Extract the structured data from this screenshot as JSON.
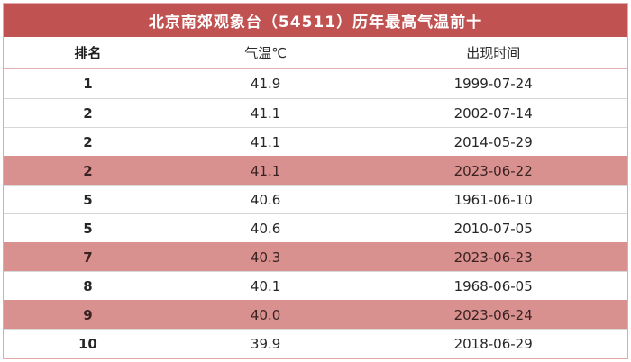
{
  "title": "北京南郊观象台（54511）历年最高气温前十",
  "columns": {
    "rank": "排名",
    "temp": "气温℃",
    "date": "出现时间"
  },
  "chart_data": {
    "type": "table",
    "title": "北京南郊观象台（54511）历年最高气温前十",
    "column_headers": [
      "排名",
      "气温℃",
      "出现时间"
    ],
    "rows": [
      {
        "rank": "1",
        "temp": "41.9",
        "date": "1999-07-24",
        "highlight": false
      },
      {
        "rank": "2",
        "temp": "41.1",
        "date": "2002-07-14",
        "highlight": false
      },
      {
        "rank": "2",
        "temp": "41.1",
        "date": "2014-05-29",
        "highlight": false
      },
      {
        "rank": "2",
        "temp": "41.1",
        "date": "2023-06-22",
        "highlight": true
      },
      {
        "rank": "5",
        "temp": "40.6",
        "date": "1961-06-10",
        "highlight": false
      },
      {
        "rank": "5",
        "temp": "40.6",
        "date": "2010-07-05",
        "highlight": false
      },
      {
        "rank": "7",
        "temp": "40.3",
        "date": "2023-06-23",
        "highlight": true
      },
      {
        "rank": "8",
        "temp": "40.1",
        "date": "1968-06-05",
        "highlight": false
      },
      {
        "rank": "9",
        "temp": "40.0",
        "date": "2023-06-24",
        "highlight": true
      },
      {
        "rank": "10",
        "temp": "39.9",
        "date": "2018-06-29",
        "highlight": false
      }
    ]
  },
  "colors": {
    "header_bg": "#c05252",
    "title_text": "#ffffff",
    "highlight_bg": "#d9918f",
    "border": "#e2a9a7",
    "header_separator": "#e3b1af",
    "row_separator": "#d8d8d8",
    "text": "#262626"
  }
}
